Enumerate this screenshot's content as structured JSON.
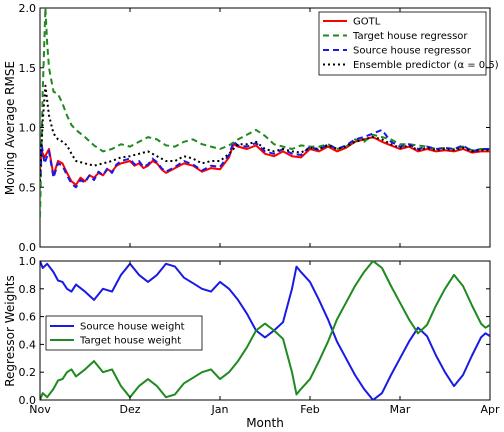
{
  "chart_data": [
    {
      "type": "line",
      "xlabel": "",
      "ylabel": "Moving Average RMSE",
      "ylim": [
        0.0,
        2.0
      ],
      "yticks": [
        "0.0",
        "0.5",
        "1.0",
        "1.5",
        "2.0"
      ],
      "xlim": [
        0,
        5
      ],
      "grid": false,
      "legend": "top-right",
      "series": [
        {
          "name": "GOTL",
          "color": "#ff0000",
          "style": "solid",
          "x": [
            0.0,
            0.02,
            0.05,
            0.1,
            0.15,
            0.2,
            0.25,
            0.3,
            0.35,
            0.4,
            0.45,
            0.5,
            0.55,
            0.6,
            0.65,
            0.7,
            0.75,
            0.8,
            0.85,
            0.9,
            1.0,
            1.05,
            1.1,
            1.15,
            1.2,
            1.25,
            1.3,
            1.35,
            1.4,
            1.5,
            1.6,
            1.7,
            1.8,
            1.9,
            2.0,
            2.1,
            2.15,
            2.2,
            2.3,
            2.4,
            2.5,
            2.6,
            2.7,
            2.8,
            2.9,
            3.0,
            3.1,
            3.2,
            3.3,
            3.4,
            3.5,
            3.6,
            3.7,
            3.8,
            3.9,
            4.0,
            4.1,
            4.2,
            4.3,
            4.4,
            4.5,
            4.6,
            4.7,
            4.8,
            4.9,
            5.0
          ],
          "y": [
            0.65,
            0.8,
            0.75,
            0.82,
            0.6,
            0.72,
            0.7,
            0.62,
            0.55,
            0.52,
            0.58,
            0.55,
            0.6,
            0.58,
            0.62,
            0.6,
            0.65,
            0.63,
            0.68,
            0.7,
            0.72,
            0.68,
            0.7,
            0.66,
            0.68,
            0.72,
            0.7,
            0.65,
            0.62,
            0.66,
            0.7,
            0.68,
            0.63,
            0.66,
            0.65,
            0.75,
            0.86,
            0.84,
            0.82,
            0.85,
            0.78,
            0.76,
            0.8,
            0.76,
            0.75,
            0.82,
            0.8,
            0.84,
            0.8,
            0.83,
            0.88,
            0.9,
            0.92,
            0.88,
            0.85,
            0.82,
            0.84,
            0.8,
            0.82,
            0.8,
            0.81,
            0.8,
            0.82,
            0.79,
            0.8,
            0.8
          ]
        },
        {
          "name": "Target house regressor",
          "color": "#1f8a1f",
          "style": "dashed",
          "x": [
            0.0,
            0.03,
            0.06,
            0.08,
            0.1,
            0.15,
            0.2,
            0.25,
            0.3,
            0.35,
            0.4,
            0.5,
            0.6,
            0.7,
            0.8,
            0.9,
            1.0,
            1.1,
            1.2,
            1.3,
            1.4,
            1.5,
            1.6,
            1.7,
            1.8,
            1.9,
            2.0,
            2.1,
            2.2,
            2.3,
            2.4,
            2.5,
            2.6,
            2.7,
            2.8,
            2.9,
            3.0,
            3.1,
            3.2,
            3.3,
            3.4,
            3.5,
            3.6,
            3.7,
            3.8,
            3.9,
            4.0,
            4.1,
            4.2,
            4.3,
            4.4,
            4.5,
            4.6,
            4.7,
            4.8,
            4.9,
            5.0
          ],
          "y": [
            0.25,
            1.3,
            2.0,
            1.7,
            1.5,
            1.3,
            1.28,
            1.2,
            1.1,
            1.02,
            0.98,
            0.92,
            0.85,
            0.8,
            0.82,
            0.86,
            0.84,
            0.88,
            0.92,
            0.9,
            0.85,
            0.84,
            0.88,
            0.9,
            0.86,
            0.84,
            0.82,
            0.85,
            0.9,
            0.94,
            0.98,
            0.93,
            0.86,
            0.84,
            0.82,
            0.85,
            0.84,
            0.84,
            0.86,
            0.82,
            0.84,
            0.9,
            0.88,
            0.94,
            0.92,
            0.9,
            0.86,
            0.86,
            0.85,
            0.84,
            0.82,
            0.83,
            0.82,
            0.84,
            0.81,
            0.82,
            0.82
          ]
        },
        {
          "name": "Source house regressor",
          "color": "#1a1ae6",
          "style": "dashed",
          "x": [
            0.0,
            0.02,
            0.05,
            0.1,
            0.15,
            0.2,
            0.25,
            0.3,
            0.35,
            0.4,
            0.45,
            0.5,
            0.55,
            0.6,
            0.65,
            0.7,
            0.75,
            0.8,
            0.85,
            0.9,
            1.0,
            1.05,
            1.1,
            1.15,
            1.2,
            1.25,
            1.3,
            1.35,
            1.4,
            1.5,
            1.6,
            1.7,
            1.8,
            1.9,
            2.0,
            2.1,
            2.15,
            2.2,
            2.3,
            2.4,
            2.5,
            2.6,
            2.7,
            2.8,
            2.9,
            3.0,
            3.1,
            3.2,
            3.3,
            3.4,
            3.5,
            3.6,
            3.7,
            3.8,
            3.9,
            4.0,
            4.1,
            4.2,
            4.3,
            4.4,
            4.5,
            4.6,
            4.7,
            4.8,
            4.9,
            5.0
          ],
          "y": [
            0.6,
            0.85,
            0.7,
            0.8,
            0.58,
            0.7,
            0.68,
            0.6,
            0.53,
            0.5,
            0.56,
            0.54,
            0.6,
            0.56,
            0.63,
            0.6,
            0.66,
            0.62,
            0.69,
            0.72,
            0.74,
            0.69,
            0.72,
            0.67,
            0.69,
            0.74,
            0.71,
            0.66,
            0.63,
            0.67,
            0.72,
            0.69,
            0.64,
            0.68,
            0.67,
            0.77,
            0.88,
            0.85,
            0.84,
            0.87,
            0.8,
            0.78,
            0.82,
            0.78,
            0.77,
            0.84,
            0.81,
            0.86,
            0.82,
            0.85,
            0.9,
            0.92,
            0.95,
            0.98,
            0.88,
            0.84,
            0.86,
            0.82,
            0.84,
            0.82,
            0.83,
            0.82,
            0.85,
            0.8,
            0.82,
            0.82
          ]
        },
        {
          "name": "Ensemble predictor (α = 0.5)",
          "color": "#000000",
          "style": "dotted",
          "x": [
            0.0,
            0.03,
            0.06,
            0.1,
            0.15,
            0.2,
            0.25,
            0.3,
            0.35,
            0.4,
            0.5,
            0.6,
            0.7,
            0.8,
            0.9,
            1.0,
            1.1,
            1.2,
            1.3,
            1.4,
            1.5,
            1.6,
            1.7,
            1.8,
            1.9,
            2.0,
            2.1,
            2.2,
            2.3,
            2.4,
            2.5,
            2.6,
            2.7,
            2.8,
            2.9,
            3.0,
            3.1,
            3.2,
            3.3,
            3.4,
            3.5,
            3.6,
            3.7,
            3.8,
            3.9,
            4.0,
            4.1,
            4.2,
            4.3,
            4.4,
            4.5,
            4.6,
            4.7,
            4.8,
            4.9,
            5.0
          ],
          "y": [
            0.55,
            1.05,
            1.35,
            1.1,
            0.95,
            0.9,
            0.88,
            0.85,
            0.78,
            0.72,
            0.7,
            0.68,
            0.7,
            0.72,
            0.75,
            0.76,
            0.78,
            0.8,
            0.76,
            0.72,
            0.72,
            0.76,
            0.74,
            0.7,
            0.72,
            0.72,
            0.78,
            0.86,
            0.86,
            0.88,
            0.82,
            0.8,
            0.82,
            0.8,
            0.79,
            0.83,
            0.82,
            0.85,
            0.82,
            0.84,
            0.88,
            0.9,
            0.92,
            0.9,
            0.86,
            0.83,
            0.85,
            0.81,
            0.83,
            0.81,
            0.82,
            0.81,
            0.83,
            0.8,
            0.81,
            0.81
          ]
        }
      ]
    },
    {
      "type": "line",
      "xlabel": "Month",
      "ylabel": "Regressor Weights",
      "ylim": [
        0.0,
        1.0
      ],
      "yticks": [
        "0.0",
        "0.2",
        "0.4",
        "0.6",
        "0.8",
        "1.0"
      ],
      "xlim": [
        0,
        5
      ],
      "xticks": [
        "Nov",
        "Dez",
        "Jan",
        "Feb",
        "Mar",
        "Apr"
      ],
      "grid": false,
      "legend": "center-left",
      "series": [
        {
          "name": "Source house weight",
          "color": "#1a1ae6",
          "style": "solid",
          "x": [
            0.0,
            0.03,
            0.08,
            0.15,
            0.2,
            0.25,
            0.3,
            0.35,
            0.4,
            0.5,
            0.6,
            0.7,
            0.8,
            0.9,
            1.0,
            1.1,
            1.2,
            1.3,
            1.4,
            1.5,
            1.6,
            1.7,
            1.8,
            1.9,
            2.0,
            2.1,
            2.2,
            2.3,
            2.4,
            2.5,
            2.6,
            2.7,
            2.8,
            2.85,
            2.9,
            3.0,
            3.1,
            3.2,
            3.3,
            3.4,
            3.5,
            3.6,
            3.7,
            3.8,
            3.9,
            4.0,
            4.1,
            4.2,
            4.3,
            4.4,
            4.5,
            4.6,
            4.7,
            4.8,
            4.9,
            4.95,
            5.0
          ],
          "y": [
            1.0,
            0.95,
            0.98,
            0.92,
            0.86,
            0.85,
            0.8,
            0.78,
            0.83,
            0.78,
            0.72,
            0.8,
            0.78,
            0.9,
            0.98,
            0.9,
            0.85,
            0.9,
            0.98,
            0.96,
            0.88,
            0.84,
            0.8,
            0.78,
            0.85,
            0.8,
            0.72,
            0.62,
            0.5,
            0.45,
            0.5,
            0.56,
            0.8,
            0.96,
            0.92,
            0.85,
            0.72,
            0.58,
            0.42,
            0.3,
            0.18,
            0.08,
            0.0,
            0.05,
            0.18,
            0.3,
            0.42,
            0.52,
            0.46,
            0.32,
            0.2,
            0.1,
            0.18,
            0.32,
            0.45,
            0.48,
            0.46
          ]
        },
        {
          "name": "Target house weight",
          "color": "#1f8a1f",
          "style": "solid",
          "x": [
            0.0,
            0.03,
            0.08,
            0.15,
            0.2,
            0.25,
            0.3,
            0.35,
            0.4,
            0.5,
            0.6,
            0.7,
            0.8,
            0.9,
            1.0,
            1.1,
            1.2,
            1.3,
            1.4,
            1.5,
            1.6,
            1.7,
            1.8,
            1.9,
            2.0,
            2.1,
            2.2,
            2.3,
            2.4,
            2.5,
            2.6,
            2.7,
            2.8,
            2.85,
            2.9,
            3.0,
            3.1,
            3.2,
            3.3,
            3.4,
            3.5,
            3.6,
            3.7,
            3.8,
            3.9,
            4.0,
            4.1,
            4.2,
            4.3,
            4.4,
            4.5,
            4.6,
            4.7,
            4.8,
            4.9,
            4.95,
            5.0
          ],
          "y": [
            0.0,
            0.05,
            0.02,
            0.08,
            0.14,
            0.15,
            0.2,
            0.22,
            0.17,
            0.22,
            0.28,
            0.2,
            0.22,
            0.1,
            0.02,
            0.1,
            0.15,
            0.1,
            0.02,
            0.04,
            0.12,
            0.16,
            0.2,
            0.22,
            0.15,
            0.2,
            0.28,
            0.38,
            0.5,
            0.55,
            0.5,
            0.44,
            0.2,
            0.04,
            0.08,
            0.15,
            0.28,
            0.42,
            0.58,
            0.7,
            0.82,
            0.92,
            1.0,
            0.95,
            0.82,
            0.7,
            0.58,
            0.48,
            0.54,
            0.68,
            0.8,
            0.9,
            0.82,
            0.68,
            0.55,
            0.52,
            0.54
          ]
        }
      ]
    }
  ]
}
